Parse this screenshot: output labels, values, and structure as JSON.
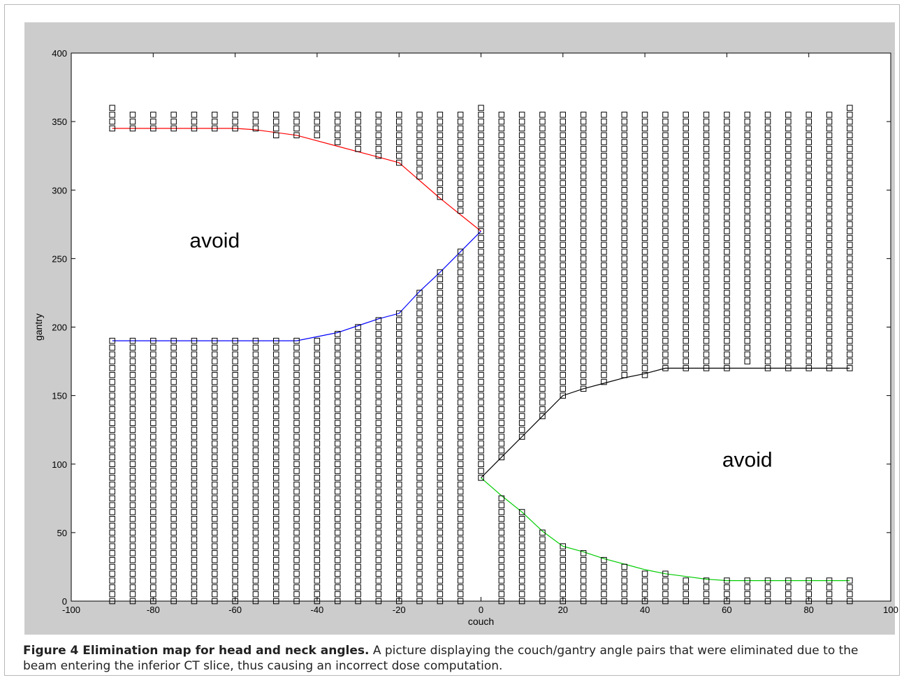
{
  "caption": {
    "title": "Figure 4 Elimination map for head and neck angles.",
    "text": "A picture displaying the couch/gantry angle pairs that were eliminated due to the beam entering the inferior CT slice, thus causing an incorrect dose computation."
  },
  "chart_data": {
    "type": "scatter",
    "xlabel": "couch",
    "ylabel": "gantry",
    "xlim": [
      -100,
      100
    ],
    "ylim": [
      0,
      400
    ],
    "xticks": [
      -100,
      -80,
      -60,
      -40,
      -20,
      0,
      20,
      40,
      60,
      80,
      100
    ],
    "yticks": [
      0,
      50,
      100,
      150,
      200,
      250,
      300,
      350,
      400
    ],
    "grid": false,
    "annotations": [
      {
        "text": "avoid",
        "x": -65,
        "y": 258
      },
      {
        "text": "avoid",
        "x": 65,
        "y": 98
      }
    ],
    "marker_columns": [
      {
        "x": -90,
        "segments": [
          [
            0,
            190
          ],
          [
            345,
            360
          ]
        ]
      },
      {
        "x": -85,
        "segments": [
          [
            0,
            190
          ],
          [
            345,
            355
          ]
        ]
      },
      {
        "x": -80,
        "segments": [
          [
            0,
            190
          ],
          [
            345,
            355
          ]
        ]
      },
      {
        "x": -75,
        "segments": [
          [
            0,
            190
          ],
          [
            345,
            355
          ]
        ]
      },
      {
        "x": -70,
        "segments": [
          [
            0,
            190
          ],
          [
            345,
            355
          ]
        ]
      },
      {
        "x": -65,
        "segments": [
          [
            0,
            190
          ],
          [
            345,
            355
          ]
        ]
      },
      {
        "x": -60,
        "segments": [
          [
            0,
            190
          ],
          [
            345,
            355
          ]
        ]
      },
      {
        "x": -55,
        "segments": [
          [
            0,
            190
          ],
          [
            345,
            355
          ]
        ]
      },
      {
        "x": -50,
        "segments": [
          [
            0,
            190
          ],
          [
            340,
            355
          ]
        ]
      },
      {
        "x": -45,
        "segments": [
          [
            0,
            190
          ],
          [
            340,
            355
          ]
        ]
      },
      {
        "x": -40,
        "segments": [
          [
            0,
            190
          ],
          [
            340,
            355
          ]
        ]
      },
      {
        "x": -35,
        "segments": [
          [
            0,
            195
          ],
          [
            335,
            355
          ]
        ]
      },
      {
        "x": -30,
        "segments": [
          [
            0,
            200
          ],
          [
            330,
            355
          ]
        ]
      },
      {
        "x": -25,
        "segments": [
          [
            0,
            205
          ],
          [
            325,
            355
          ]
        ]
      },
      {
        "x": -20,
        "segments": [
          [
            0,
            210
          ],
          [
            320,
            355
          ]
        ]
      },
      {
        "x": -15,
        "segments": [
          [
            0,
            225
          ],
          [
            310,
            355
          ]
        ]
      },
      {
        "x": -10,
        "segments": [
          [
            0,
            240
          ],
          [
            295,
            355
          ]
        ]
      },
      {
        "x": -5,
        "segments": [
          [
            0,
            255
          ],
          [
            285,
            355
          ]
        ]
      },
      {
        "x": 0,
        "segments": [
          [
            90,
            360
          ]
        ]
      },
      {
        "x": 5,
        "segments": [
          [
            0,
            75
          ],
          [
            105,
            355
          ]
        ]
      },
      {
        "x": 10,
        "segments": [
          [
            0,
            65
          ],
          [
            120,
            355
          ]
        ]
      },
      {
        "x": 15,
        "segments": [
          [
            0,
            50
          ],
          [
            135,
            355
          ]
        ]
      },
      {
        "x": 20,
        "segments": [
          [
            0,
            40
          ],
          [
            150,
            355
          ]
        ]
      },
      {
        "x": 25,
        "segments": [
          [
            0,
            35
          ],
          [
            155,
            355
          ]
        ]
      },
      {
        "x": 30,
        "segments": [
          [
            0,
            30
          ],
          [
            160,
            355
          ]
        ]
      },
      {
        "x": 35,
        "segments": [
          [
            0,
            25
          ],
          [
            165,
            355
          ]
        ]
      },
      {
        "x": 40,
        "segments": [
          [
            0,
            20
          ],
          [
            165,
            355
          ]
        ]
      },
      {
        "x": 45,
        "segments": [
          [
            0,
            20
          ],
          [
            170,
            355
          ]
        ]
      },
      {
        "x": 50,
        "segments": [
          [
            0,
            15
          ],
          [
            170,
            355
          ]
        ]
      },
      {
        "x": 55,
        "segments": [
          [
            0,
            15
          ],
          [
            170,
            355
          ]
        ]
      },
      {
        "x": 60,
        "segments": [
          [
            0,
            15
          ],
          [
            170,
            355
          ]
        ]
      },
      {
        "x": 65,
        "segments": [
          [
            0,
            15
          ],
          [
            175,
            355
          ]
        ]
      },
      {
        "x": 70,
        "segments": [
          [
            0,
            15
          ],
          [
            170,
            355
          ]
        ]
      },
      {
        "x": 75,
        "segments": [
          [
            0,
            15
          ],
          [
            170,
            355
          ]
        ]
      },
      {
        "x": 80,
        "segments": [
          [
            0,
            15
          ],
          [
            170,
            355
          ]
        ]
      },
      {
        "x": 85,
        "segments": [
          [
            0,
            15
          ],
          [
            170,
            355
          ]
        ]
      },
      {
        "x": 90,
        "segments": [
          [
            0,
            15
          ],
          [
            170,
            360
          ]
        ]
      }
    ],
    "marker_step": 5,
    "series": [
      {
        "color": "#ff0000",
        "x": [
          -90,
          -60,
          -55,
          -45,
          -35,
          -25,
          -20,
          -15,
          -10,
          -5,
          0
        ],
        "y": [
          345,
          345,
          344,
          340,
          332,
          324,
          320,
          307,
          294,
          282,
          270
        ]
      },
      {
        "color": "#0000ff",
        "x": [
          -90,
          -45,
          -35,
          -30,
          -25,
          -20,
          -15,
          -10,
          -5,
          0
        ],
        "y": [
          190,
          190,
          196,
          201,
          206,
          210,
          226,
          240,
          255,
          270
        ]
      },
      {
        "color": "#000000",
        "x": [
          0,
          5,
          10,
          15,
          20,
          25,
          30,
          35,
          40,
          45,
          50,
          90
        ],
        "y": [
          90,
          105,
          120,
          135,
          150,
          155,
          159,
          163,
          166,
          170,
          170,
          170
        ]
      },
      {
        "color": "#00cc00",
        "x": [
          0,
          5,
          10,
          15,
          20,
          25,
          30,
          35,
          40,
          45,
          50,
          55,
          60,
          90
        ],
        "y": [
          90,
          77,
          65,
          51,
          40,
          36,
          31,
          27,
          23,
          20,
          18,
          16,
          15,
          15
        ]
      }
    ]
  }
}
